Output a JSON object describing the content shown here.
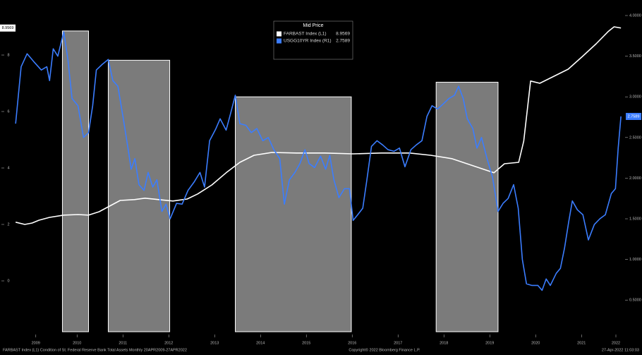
{
  "chart_data": {
    "type": "line",
    "legend_title": "Mid Price",
    "footer_left": "FARBAST Index (L1) Condition of St. Federal Reserve Bank Total Assets Monthly 20APR2009-27APR2022",
    "copyright": "Copyright© 2022 Bloomberg Finance L.P.",
    "timestamp": "27-Apr-2022 11:03:03",
    "xlim": [
      2008.95,
      2022.35
    ],
    "xticks": [
      {
        "value": 2009.5,
        "label": "2009"
      },
      {
        "value": 2010.4,
        "label": "2010"
      },
      {
        "value": 2011.4,
        "label": "2011"
      },
      {
        "value": 2012.4,
        "label": "2012"
      },
      {
        "value": 2013.4,
        "label": "2013"
      },
      {
        "value": 2014.4,
        "label": "2014"
      },
      {
        "value": 2015.4,
        "label": "2015"
      },
      {
        "value": 2016.4,
        "label": "2016"
      },
      {
        "value": 2017.4,
        "label": "2017"
      },
      {
        "value": 2018.4,
        "label": "2018"
      },
      {
        "value": 2019.4,
        "label": "2019"
      },
      {
        "value": 2020.4,
        "label": "2020"
      },
      {
        "value": 2021.4,
        "label": "2021"
      },
      {
        "value": 2022.15,
        "label": "2022"
      }
    ],
    "ylim": [
      -2.05,
      9.825
    ],
    "yticks": [
      0,
      2,
      4,
      6,
      8
    ],
    "y2lim": [
      0.0243,
      4.1476
    ],
    "y2ticks": [
      {
        "value": 0.5,
        "label": "0.5000"
      },
      {
        "value": 1,
        "label": "1.0000"
      },
      {
        "value": 1.5,
        "label": "1.5000"
      },
      {
        "value": 2,
        "label": "2.0000"
      },
      {
        "value": 2.5,
        "label": "2.5000"
      },
      {
        "value": 3,
        "label": "3.0000"
      },
      {
        "value": 3.5,
        "label": "3.5000"
      },
      {
        "value": 4,
        "label": "4.0000"
      }
    ],
    "regions": [
      {
        "x": [
          2010.08,
          2010.65
        ],
        "top": 3.81
      },
      {
        "x": [
          2011.08,
          2012.42
        ],
        "top": 3.45
      },
      {
        "x": [
          2013.85,
          2016.38
        ],
        "top": 3.0
      },
      {
        "x": [
          2018.23,
          2019.58
        ],
        "top": 3.18
      }
    ],
    "series": [
      {
        "name": "FARBAST Index (L1)",
        "color": "#ffffff",
        "axis": "y",
        "x": [
          2009.06,
          2009.26,
          2009.42,
          2009.57,
          2009.8,
          2010.11,
          2010.42,
          2010.65,
          2010.88,
          2011.11,
          2011.34,
          2011.65,
          2011.88,
          2012.18,
          2012.49,
          2012.8,
          2013.03,
          2013.34,
          2013.65,
          2013.95,
          2014.26,
          2014.65,
          2015.18,
          2015.8,
          2016.42,
          2017.03,
          2017.65,
          2018.11,
          2018.57,
          2019.03,
          2019.49,
          2019.72,
          2020.03,
          2020.14,
          2020.29,
          2020.49,
          2020.8,
          2021.11,
          2021.42,
          2021.72,
          2021.98,
          2022.11,
          2022.26
        ],
        "values": [
          2.08,
          2.0,
          2.05,
          2.15,
          2.25,
          2.33,
          2.35,
          2.33,
          2.45,
          2.65,
          2.85,
          2.88,
          2.93,
          2.88,
          2.83,
          2.9,
          3.08,
          3.4,
          3.83,
          4.2,
          4.45,
          4.55,
          4.53,
          4.53,
          4.5,
          4.53,
          4.53,
          4.45,
          4.33,
          4.08,
          3.83,
          4.15,
          4.2,
          4.95,
          7.08,
          7.0,
          7.25,
          7.5,
          7.95,
          8.4,
          8.83,
          9.0,
          8.9569
        ]
      },
      {
        "name": "USGG10YR Index (R1)",
        "color": "#3b7dff",
        "axis": "y2",
        "x": [
          2009.06,
          2009.18,
          2009.31,
          2009.46,
          2009.62,
          2009.74,
          2009.8,
          2009.88,
          2009.98,
          2010.11,
          2010.2,
          2010.29,
          2010.42,
          2010.54,
          2010.65,
          2010.74,
          2010.82,
          2010.95,
          2011.08,
          2011.18,
          2011.29,
          2011.4,
          2011.51,
          2011.58,
          2011.66,
          2011.75,
          2011.86,
          2011.95,
          2012.05,
          2012.14,
          2012.25,
          2012.34,
          2012.43,
          2012.57,
          2012.69,
          2012.82,
          2012.95,
          2013.08,
          2013.18,
          2013.29,
          2013.42,
          2013.52,
          2013.65,
          2013.75,
          2013.85,
          2013.95,
          2014.08,
          2014.2,
          2014.32,
          2014.45,
          2014.57,
          2014.69,
          2014.82,
          2014.92,
          2015.03,
          2015.15,
          2015.26,
          2015.37,
          2015.46,
          2015.58,
          2015.71,
          2015.82,
          2015.91,
          2016.0,
          2016.11,
          2016.23,
          2016.34,
          2016.42,
          2016.52,
          2016.63,
          2016.72,
          2016.82,
          2016.94,
          2017.06,
          2017.18,
          2017.31,
          2017.43,
          2017.55,
          2017.68,
          2017.8,
          2017.92,
          2018.03,
          2018.14,
          2018.26,
          2018.38,
          2018.51,
          2018.63,
          2018.72,
          2018.82,
          2018.91,
          2019.03,
          2019.12,
          2019.22,
          2019.34,
          2019.46,
          2019.58,
          2019.69,
          2019.8,
          2019.92,
          2020.02,
          2020.11,
          2020.2,
          2020.32,
          2020.45,
          2020.54,
          2020.63,
          2020.72,
          2020.85,
          2020.94,
          2021.03,
          2021.12,
          2021.2,
          2021.31,
          2021.43,
          2021.55,
          2021.68,
          2021.8,
          2021.92,
          2022.05,
          2022.14,
          2022.2,
          2022.26
        ],
        "values": [
          2.67,
          3.37,
          3.53,
          3.43,
          3.33,
          3.37,
          3.2,
          3.59,
          3.5,
          3.8,
          3.46,
          2.98,
          2.89,
          2.5,
          2.56,
          2.89,
          3.33,
          3.4,
          3.46,
          3.2,
          3.13,
          2.76,
          2.37,
          2.11,
          2.24,
          1.92,
          1.85,
          2.07,
          1.89,
          1.98,
          1.59,
          1.68,
          1.5,
          1.69,
          1.68,
          1.85,
          1.95,
          2.07,
          1.89,
          2.46,
          2.6,
          2.73,
          2.59,
          2.8,
          3.02,
          2.67,
          2.65,
          2.56,
          2.61,
          2.46,
          2.5,
          2.35,
          2.24,
          1.68,
          1.98,
          2.07,
          2.18,
          2.35,
          2.18,
          2.13,
          2.27,
          2.11,
          2.28,
          1.98,
          1.76,
          1.87,
          1.87,
          1.48,
          1.55,
          1.63,
          1.98,
          2.39,
          2.46,
          2.41,
          2.35,
          2.33,
          2.37,
          2.14,
          2.35,
          2.41,
          2.46,
          2.76,
          2.89,
          2.85,
          2.91,
          2.98,
          3.02,
          3.13,
          2.98,
          2.73,
          2.61,
          2.37,
          2.5,
          2.24,
          2.01,
          1.59,
          1.69,
          1.75,
          1.92,
          1.63,
          1.0,
          0.7,
          0.68,
          0.68,
          0.62,
          0.76,
          0.68,
          0.83,
          0.89,
          1.14,
          1.46,
          1.72,
          1.61,
          1.55,
          1.24,
          1.43,
          1.5,
          1.55,
          1.81,
          1.87,
          2.37,
          2.7589
        ]
      }
    ]
  }
}
